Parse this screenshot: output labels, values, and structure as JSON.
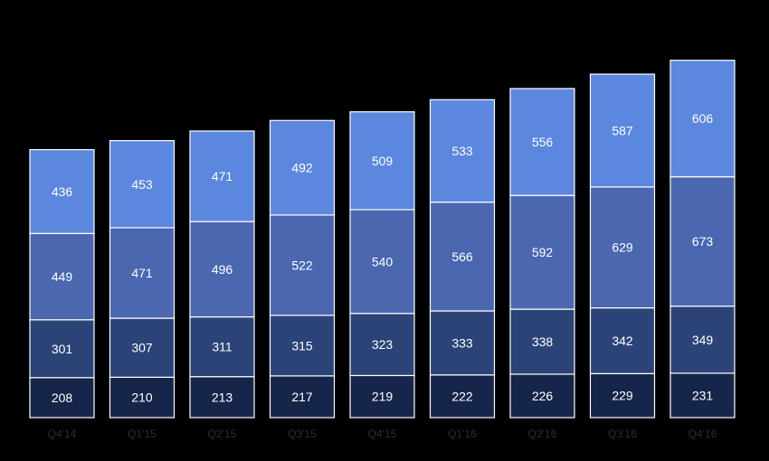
{
  "chart_data": {
    "type": "bar",
    "stacked": true,
    "categories": [
      "Q4'14",
      "Q1'15",
      "Q2'15",
      "Q3'15",
      "Q4'15",
      "Q1'16",
      "Q2'16",
      "Q3'16",
      "Q4'16"
    ],
    "series": [
      {
        "values": [
          208,
          210,
          213,
          217,
          219,
          222,
          226,
          229,
          231
        ],
        "color": "#16254a"
      },
      {
        "values": [
          301,
          307,
          311,
          315,
          323,
          333,
          338,
          342,
          349
        ],
        "color": "#2b4377"
      },
      {
        "values": [
          449,
          471,
          496,
          522,
          540,
          566,
          592,
          629,
          673
        ],
        "color": "#4a67b0"
      },
      {
        "values": [
          436,
          453,
          471,
          492,
          509,
          533,
          556,
          587,
          606
        ],
        "color": "#5b87df"
      }
    ],
    "title": "",
    "xlabel": "",
    "ylabel": "",
    "ylim": [
      0,
      1900
    ],
    "grid": false,
    "legend": "none",
    "bar_outline_color": "#ffffff",
    "background_color": "#000000"
  }
}
